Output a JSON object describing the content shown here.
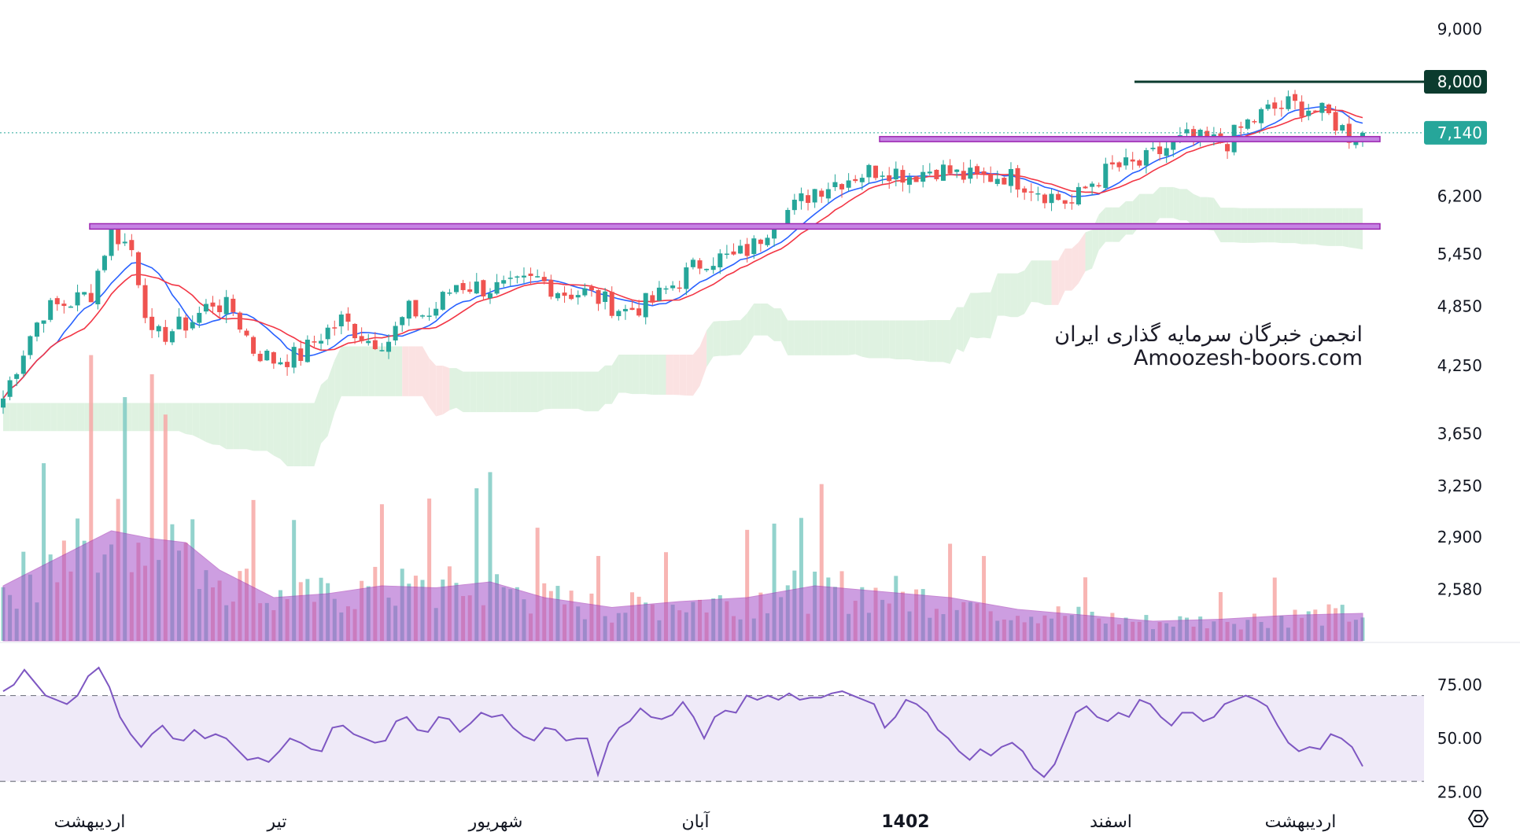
{
  "watermark": {
    "line1": "انجمن خبرگان سرمایه گذاری ایران",
    "line2": "Amoozesh-boors.com"
  },
  "colors": {
    "up": "#26a69a",
    "down": "#ef5350",
    "ma_fast": "#2962ff",
    "ma_slow": "#f23645",
    "zone": "#c583e3",
    "zone_border": "#9c27b0",
    "level_line": "#0b3b2e",
    "cloud_green": "#dff2e1",
    "cloud_red": "#fbe2e2",
    "rsi_line": "#7e57c2",
    "rsi_band": "#efeaf8"
  },
  "chart_data": [
    {
      "type": "candlestick",
      "title": "",
      "log_scale": true,
      "ylim": [
        2300,
        9600
      ],
      "y_ticks": [
        {
          "value": 9000,
          "label": "9,000"
        },
        {
          "value": 8000,
          "label": "8,000"
        },
        {
          "value": 7140,
          "label": "7,140"
        },
        {
          "value": 6200,
          "label": "6,200"
        },
        {
          "value": 5450,
          "label": "5,450"
        },
        {
          "value": 4850,
          "label": "4,850"
        },
        {
          "value": 4250,
          "label": "4,250"
        },
        {
          "value": 3650,
          "label": "3,650"
        },
        {
          "value": 3250,
          "label": "3,250"
        },
        {
          "value": 2900,
          "label": "2,900"
        },
        {
          "value": 2580,
          "label": "2,580"
        }
      ],
      "x_ticks": [
        "اردیبهشت",
        "تیر",
        "شهریور",
        "آبان",
        "1402",
        "اسفند",
        "اردیبهشت"
      ],
      "last_price": 7140,
      "horizontal_level": 8000,
      "zones": [
        {
          "from": 7000,
          "to": 7080
        },
        {
          "from": 5760,
          "to": 5830
        }
      ],
      "price_path": [
        [
          0,
          3950
        ],
        [
          4,
          4550
        ],
        [
          6,
          4800
        ],
        [
          10,
          4900
        ],
        [
          13,
          5000
        ],
        [
          16,
          5750
        ],
        [
          19,
          5500
        ],
        [
          22,
          4500
        ],
        [
          25,
          4600
        ],
        [
          28,
          4700
        ],
        [
          31,
          4900
        ],
        [
          34,
          4800
        ],
        [
          37,
          4400
        ],
        [
          40,
          4300
        ],
        [
          44,
          4350
        ],
        [
          47,
          4550
        ],
        [
          50,
          4700
        ],
        [
          54,
          4500
        ],
        [
          57,
          4500
        ],
        [
          60,
          4800
        ],
        [
          63,
          4750
        ],
        [
          67,
          5100
        ],
        [
          71,
          5050
        ],
        [
          75,
          5050
        ],
        [
          79,
          5150
        ],
        [
          83,
          5000
        ],
        [
          86,
          5000
        ],
        [
          89,
          4900
        ],
        [
          92,
          4800
        ],
        [
          96,
          4900
        ],
        [
          100,
          5150
        ],
        [
          104,
          5400
        ],
        [
          108,
          5400
        ],
        [
          111,
          5550
        ],
        [
          114,
          5900
        ],
        [
          117,
          6050
        ],
        [
          120,
          6300
        ],
        [
          123,
          6400
        ],
        [
          126,
          6500
        ],
        [
          130,
          6600
        ],
        [
          134,
          6500
        ],
        [
          138,
          6600
        ],
        [
          141,
          6500
        ],
        [
          144,
          6450
        ],
        [
          148,
          6500
        ],
        [
          152,
          6350
        ],
        [
          155,
          6200
        ],
        [
          158,
          6100
        ],
        [
          161,
          6400
        ],
        [
          164,
          6600
        ],
        [
          168,
          6650
        ],
        [
          172,
          6900
        ],
        [
          175,
          7050
        ],
        [
          178,
          7000
        ],
        [
          181,
          7000
        ],
        [
          184,
          7300
        ],
        [
          187,
          7500
        ],
        [
          190,
          7600
        ],
        [
          193,
          7550
        ],
        [
          196,
          7400
        ],
        [
          199,
          7100
        ],
        [
          201,
          7140
        ]
      ],
      "volume": {
        "avg_path": [
          [
            0,
            0.28
          ],
          [
            8,
            0.42
          ],
          [
            16,
            0.56
          ],
          [
            22,
            0.52
          ],
          [
            27,
            0.5
          ],
          [
            32,
            0.36
          ],
          [
            40,
            0.22
          ],
          [
            48,
            0.24
          ],
          [
            56,
            0.28
          ],
          [
            64,
            0.27
          ],
          [
            72,
            0.3
          ],
          [
            80,
            0.22
          ],
          [
            90,
            0.17
          ],
          [
            100,
            0.2
          ],
          [
            110,
            0.22
          ],
          [
            120,
            0.28
          ],
          [
            130,
            0.25
          ],
          [
            140,
            0.22
          ],
          [
            150,
            0.16
          ],
          [
            160,
            0.13
          ],
          [
            170,
            0.1
          ],
          [
            180,
            0.11
          ],
          [
            190,
            0.13
          ],
          [
            201,
            0.14
          ]
        ],
        "spike_bars": [
          6,
          13,
          18,
          22,
          24,
          37,
          43,
          56,
          63,
          70,
          72,
          79,
          88,
          98,
          110,
          114,
          118,
          121,
          140,
          145,
          160,
          180,
          188
        ]
      }
    },
    {
      "type": "line",
      "title": "",
      "name": "",
      "ylim": [
        24,
        90
      ],
      "bands": [
        30,
        70
      ],
      "y_ticks": [
        {
          "value": 75,
          "label": "75.00"
        },
        {
          "value": 50,
          "label": "50.00"
        },
        {
          "value": 25,
          "label": "25.00"
        }
      ],
      "values": [
        72,
        75,
        82,
        76,
        70,
        68,
        66,
        70,
        79,
        83,
        74,
        60,
        52,
        46,
        52,
        56,
        50,
        49,
        54,
        50,
        52,
        50,
        45,
        40,
        41,
        39,
        44,
        50,
        48,
        45,
        44,
        55,
        56,
        52,
        50,
        48,
        49,
        58,
        60,
        54,
        53,
        60,
        59,
        53,
        57,
        62,
        60,
        61,
        55,
        51,
        49,
        55,
        54,
        49,
        50,
        50,
        33,
        48,
        55,
        58,
        64,
        60,
        59,
        61,
        67,
        60,
        50,
        60,
        63,
        62,
        70,
        68,
        70,
        68,
        71,
        68,
        69,
        69,
        71,
        72,
        70,
        68,
        66,
        55,
        60,
        68,
        66,
        62,
        54,
        50,
        44,
        40,
        45,
        42,
        46,
        48,
        44,
        36,
        32,
        38,
        50,
        62,
        65,
        60,
        58,
        62,
        60,
        68,
        66,
        60,
        56,
        62,
        62,
        58,
        60,
        66,
        68,
        70,
        68,
        65,
        56,
        48,
        44,
        46,
        45,
        52,
        50,
        46,
        37
      ]
    }
  ]
}
